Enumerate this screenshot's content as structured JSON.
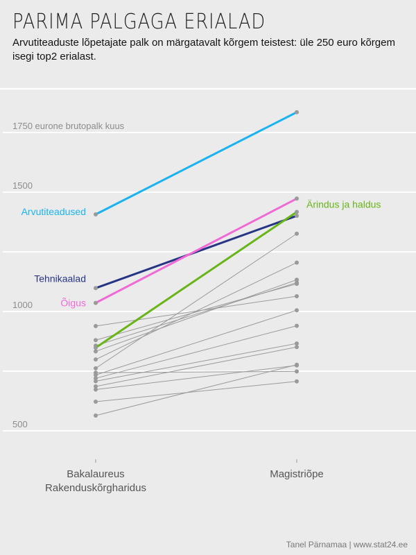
{
  "title": "PARIMA PALGAGA ERIALAD",
  "subtitle": "Arvutiteaduste lõpetajate palk on märgatavalt kõrgem teistest: üle 250 euro kõrgem isegi top2 erialast.",
  "credit": "Tanel Pärnamaa | www.stat24.ee",
  "colors": {
    "background": "#ebebeb",
    "gridline": "#ffffff",
    "gray_series": "#9a9a9a",
    "arvutiteadused": "#1ab3f0",
    "tehnikaalad": "#263484",
    "oigus": "#f06ad6",
    "arindus": "#69b418"
  },
  "chart_data": {
    "type": "line",
    "title": "PARIMA PALGAGA ERIALAD",
    "ylabel": "1750 eurone brutopalk kuus",
    "ylim": [
      400,
      1870
    ],
    "y_gridlines": [
      500,
      750,
      1000,
      1250,
      1500,
      1750
    ],
    "y_tick_labels": [
      {
        "value": 500,
        "label": "500"
      },
      {
        "value": 1000,
        "label": "1000"
      },
      {
        "value": 1500,
        "label": "1500"
      },
      {
        "value": 1750,
        "label": "1750 eurone brutopalk kuus"
      }
    ],
    "categories": [
      "Bakalaureus\nRakenduskõrgharidus",
      "Magistriõpe"
    ],
    "highlighted_series": [
      {
        "name": "Arvutiteadused",
        "label": "Arvutiteadused",
        "label_side": "left",
        "color": "#1ab3f0",
        "values": [
          1407,
          1835
        ]
      },
      {
        "name": "Tehnikaalad",
        "label": "Tehnikaalad",
        "label_side": "left",
        "color": "#263484",
        "values": [
          1098,
          1401
        ]
      },
      {
        "name": "Õigus",
        "label": "Õigus",
        "label_side": "left",
        "color": "#f06ad6",
        "values": [
          1036,
          1473
        ]
      },
      {
        "name": "Ärindus ja haldus",
        "label": "Ärindus ja haldus",
        "label_side": "right",
        "color": "#69b418",
        "values": [
          848,
          1417
        ]
      }
    ],
    "other_series": [
      {
        "values": [
          939,
          1064
        ]
      },
      {
        "values": [
          880,
          1116
        ]
      },
      {
        "values": [
          857,
          1121
        ]
      },
      {
        "values": [
          833,
          1133
        ]
      },
      {
        "values": [
          799,
          1205
        ]
      },
      {
        "values": [
          762,
          1326
        ]
      },
      {
        "values": [
          734,
          1005
        ]
      },
      {
        "values": [
          720,
          940
        ]
      },
      {
        "values": [
          708,
          866
        ]
      },
      {
        "values": [
          686,
          851
        ]
      },
      {
        "values": [
          673,
          774
        ]
      },
      {
        "values": [
          622,
          707
        ]
      },
      {
        "values": [
          564,
          777
        ]
      },
      {
        "values": [
          744,
          749
        ]
      }
    ]
  }
}
